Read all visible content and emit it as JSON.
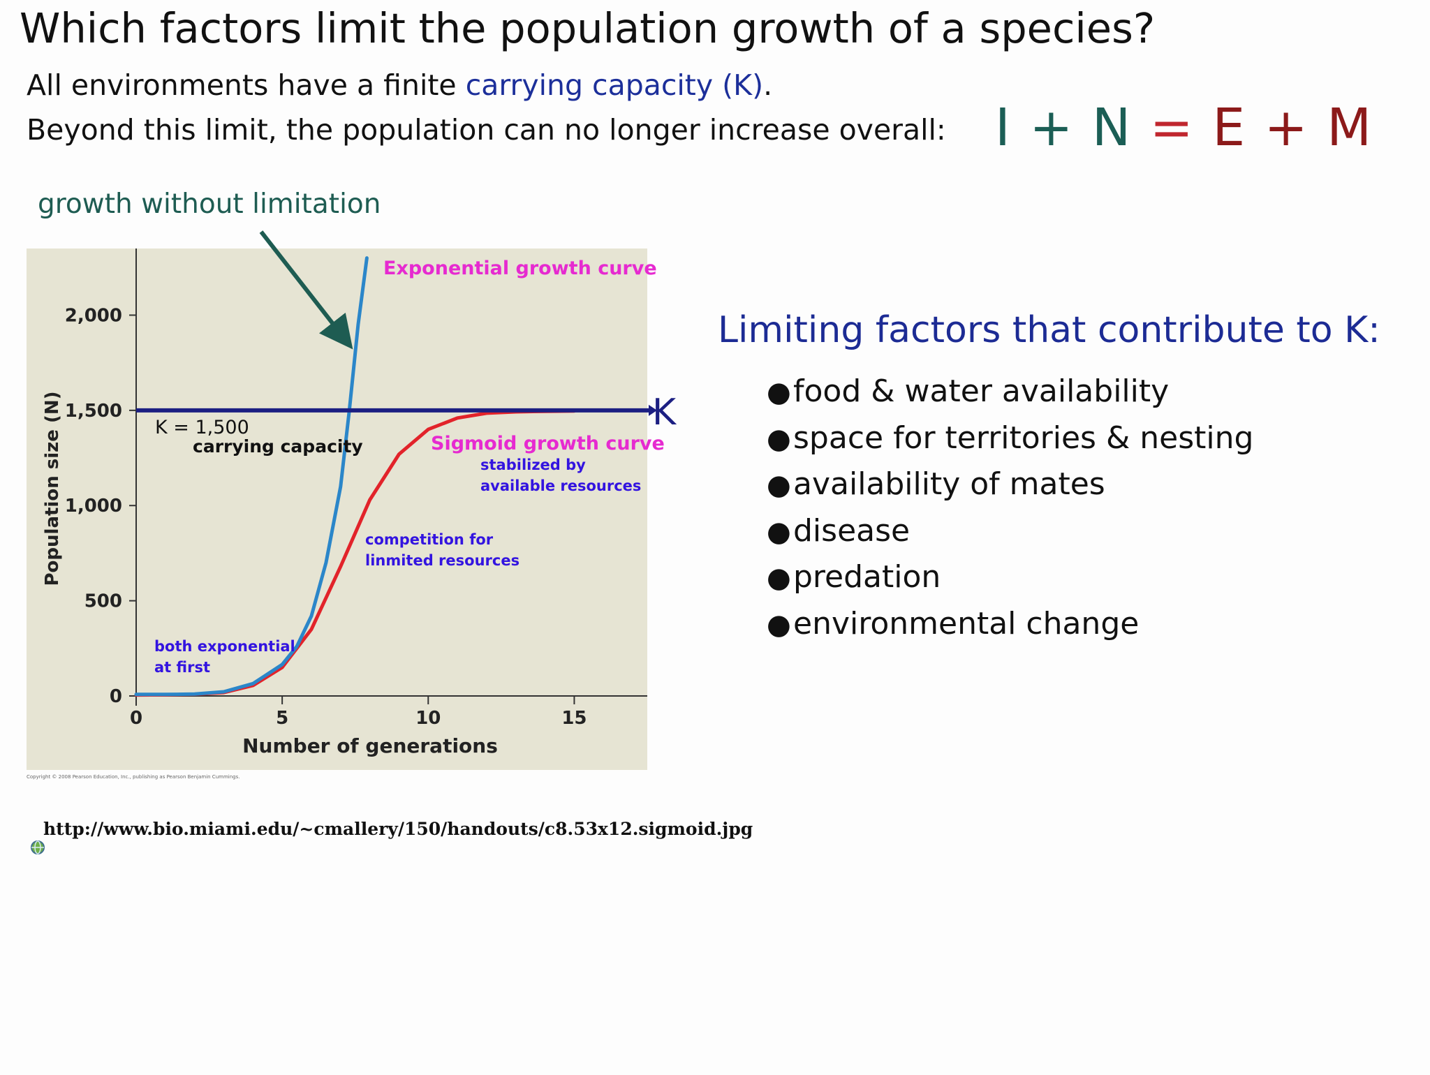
{
  "slide": {
    "title": "Which factors limit the population growth of a species?",
    "line1_prefix": "All environments have a finite ",
    "line1_term": "carrying capacity (K)",
    "line1_suffix": ".",
    "line2": "Beyond this limit, the population can no longer increase overall:",
    "equation": {
      "I": "I",
      "plus1": "+",
      "N": "N",
      "eq": "=",
      "E": "E",
      "plus2": "+",
      "M": "M"
    },
    "growth_label": "growth without limitation",
    "k_label": "K",
    "limiting_title": "Limiting factors that contribute to K:",
    "factors": [
      "food & water availability",
      "space for territories & nesting",
      "availability of mates",
      "disease",
      "predation",
      "environmental change"
    ],
    "bullet": "●",
    "url": "http://www.bio.miami.edu/~cmallery/150/handouts/c8.53x12.sigmoid.jpg",
    "copyright": "Copyright © 2008 Pearson Education, Inc., publishing as Pearson Benjamin Cummings."
  },
  "colors": {
    "plot_bg": "#e6e4d3",
    "exponential": "#2b86c9",
    "sigmoid": "#e2232a",
    "carrying_capacity": "#1c1f82",
    "arrow": "#1e5c52",
    "annot_magenta": "#e62ad0",
    "annot_blue": "#3314e0"
  },
  "chart_data": {
    "type": "line",
    "xlabel": "Number of generations",
    "ylabel": "Population size (N)",
    "xlim": [
      0,
      17.5
    ],
    "ylim": [
      0,
      2350
    ],
    "x_ticks": [
      0,
      5,
      10,
      15
    ],
    "x_tick_labels": [
      "0",
      "5",
      "10",
      "15"
    ],
    "y_ticks": [
      0,
      500,
      1000,
      1500,
      2000
    ],
    "y_tick_labels": [
      "0",
      "500",
      "1,000",
      "1,500",
      "2,000"
    ],
    "grid": false,
    "series": [
      {
        "name": "Exponential growth curve",
        "x": [
          0,
          1,
          2,
          3,
          4,
          5,
          5.5,
          6,
          6.5,
          7,
          7.3,
          7.6,
          7.9
        ],
        "y": [
          8,
          8,
          10,
          22,
          65,
          165,
          260,
          420,
          700,
          1100,
          1500,
          1950,
          2300
        ]
      },
      {
        "name": "Sigmoid growth curve",
        "x": [
          0,
          1,
          2,
          3,
          4,
          5,
          6,
          7,
          8,
          9,
          10,
          11,
          12,
          13,
          14,
          15
        ],
        "y": [
          5,
          6,
          9,
          18,
          55,
          150,
          350,
          680,
          1030,
          1270,
          1400,
          1460,
          1485,
          1492,
          1495,
          1497
        ]
      }
    ],
    "carrying_capacity": 1500,
    "annotations": {
      "k_value": "K = 1,500",
      "k_caption": "carrying capacity",
      "sigmoid_note_1": "stabilized by",
      "sigmoid_note_2": "available resources",
      "competition_1": "competition for",
      "competition_2": "linmited resources",
      "both_1": "both exponential",
      "both_2": "at first"
    }
  }
}
